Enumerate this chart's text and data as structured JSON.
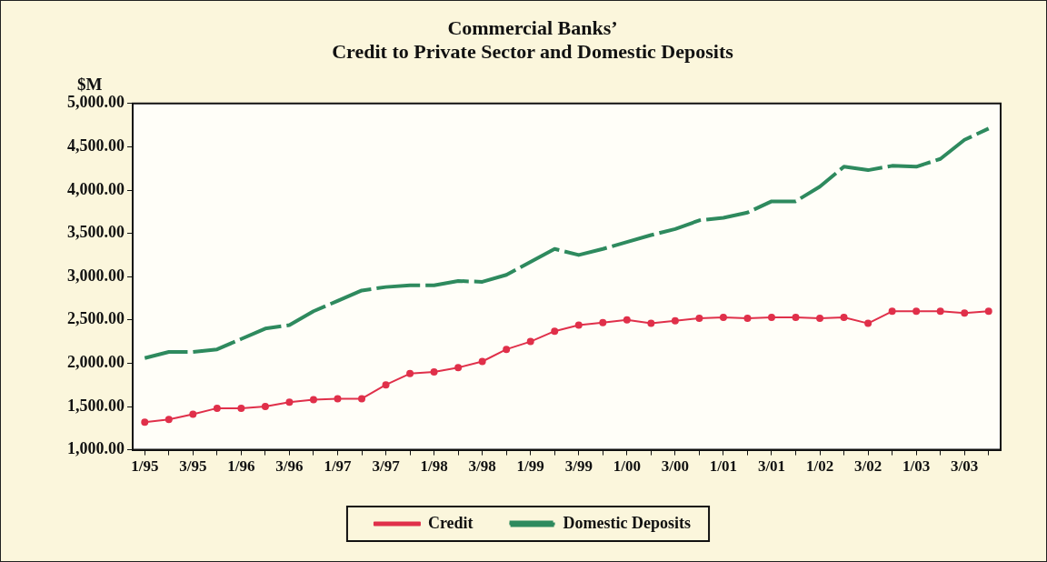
{
  "chart_data": {
    "type": "line",
    "title": "Commercial Banks’\nCredit to Private Sector and Domestic Deposits",
    "ylabel": "$M",
    "categories": [
      "1/95",
      null,
      "3/95",
      null,
      "1/96",
      null,
      "3/96",
      null,
      "1/97",
      null,
      "3/97",
      null,
      "1/98",
      null,
      "3/98",
      null,
      "1/99",
      null,
      "3/99",
      null,
      "1/00",
      null,
      "3/00",
      null,
      "1/01",
      null,
      "3/01",
      null,
      "1/02",
      null,
      "3/02",
      null,
      "1/03",
      null,
      "3/03",
      null
    ],
    "series": [
      {
        "name": "Credit",
        "color": "#e0304a",
        "marker": "circle",
        "line_style": "solid",
        "values": [
          1320,
          1350,
          1410,
          1480,
          1480,
          1500,
          1550,
          1580,
          1590,
          1590,
          1750,
          1880,
          1900,
          1950,
          2020,
          2160,
          2250,
          2370,
          2440,
          2470,
          2500,
          2460,
          2490,
          2520,
          2530,
          2520,
          2530,
          2530,
          2520,
          2530,
          2460,
          2600,
          2600,
          2600,
          2580,
          2600
        ]
      },
      {
        "name": "Domestic Deposits",
        "color": "#2e8a5e",
        "marker": "none",
        "line_style": "dashed",
        "values": [
          2060,
          2130,
          2130,
          2160,
          2280,
          2400,
          2440,
          2600,
          2720,
          2840,
          2880,
          2900,
          2900,
          2950,
          2940,
          3020,
          3170,
          3320,
          3250,
          3320,
          3400,
          3480,
          3550,
          3650,
          3680,
          3740,
          3870,
          3870,
          4040,
          4270,
          4230,
          4280,
          4270,
          4360,
          4580,
          4710
        ]
      }
    ],
    "ylim": [
      1000,
      5000
    ],
    "yticks": [
      {
        "value": 1000,
        "label": "1,000.00"
      },
      {
        "value": 1500,
        "label": "1,500.00"
      },
      {
        "value": 2000,
        "label": "2,000.00"
      },
      {
        "value": 2500,
        "label": "2,500.00"
      },
      {
        "value": 3000,
        "label": "3,000.00"
      },
      {
        "value": 3500,
        "label": "3,500.00"
      },
      {
        "value": 4000,
        "label": "4,000.00"
      },
      {
        "value": 4500,
        "label": "4,500.00"
      },
      {
        "value": 5000,
        "label": "5,000.00"
      }
    ],
    "grid": false,
    "legend": "bottom"
  }
}
